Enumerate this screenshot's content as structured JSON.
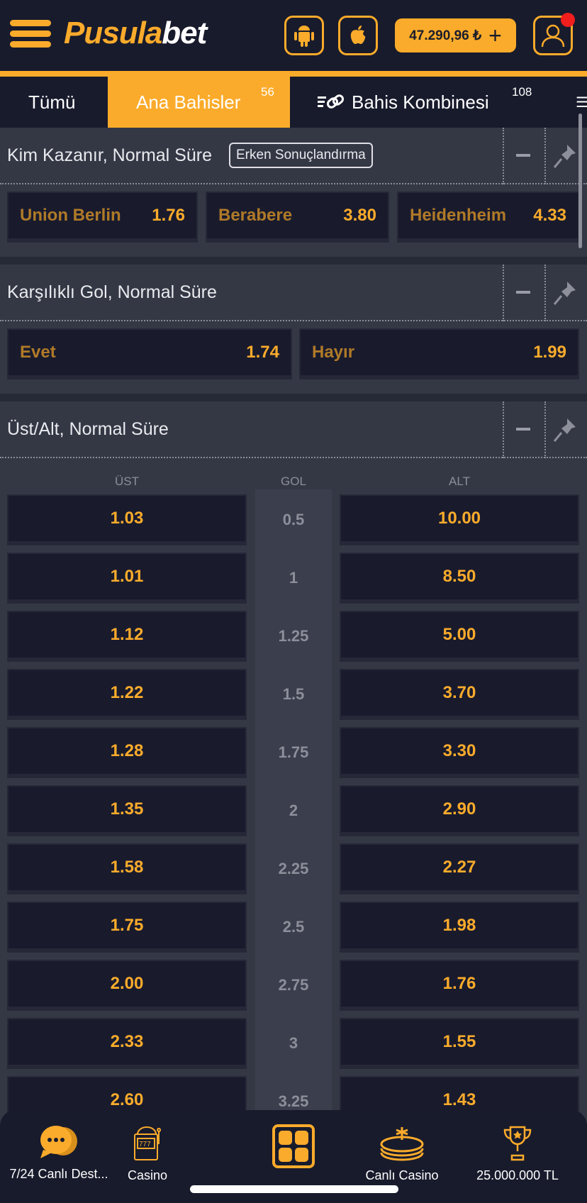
{
  "header": {
    "logo_part1": "Pusula",
    "logo_part2": "bet",
    "balance": "47.290,96 ₺",
    "plus": "+",
    "accent": "#fbab2b"
  },
  "tabs": [
    {
      "label": "Tümü"
    },
    {
      "label": "Ana Bahisler",
      "count": "56"
    },
    {
      "label": "Bahis Kombinesi",
      "count": "108"
    }
  ],
  "markets": {
    "winner": {
      "title": "Kim Kazanır, Normal Süre",
      "badge": "Erken Sonuçlandırma",
      "outcomes": [
        {
          "name": "Union Berlin",
          "odd": "1.76"
        },
        {
          "name": "Berabere",
          "odd": "3.80"
        },
        {
          "name": "Heidenheim",
          "odd": "4.33"
        }
      ]
    },
    "btts": {
      "title": "Karşılıklı Gol, Normal Süre",
      "outcomes": [
        {
          "name": "Evet",
          "odd": "1.74"
        },
        {
          "name": "Hayır",
          "odd": "1.99"
        }
      ]
    },
    "overunder": {
      "title": "Üst/Alt, Normal Süre",
      "col_over": "ÜST",
      "col_goal": "GOL",
      "col_under": "ALT",
      "rows": [
        {
          "over": "1.03",
          "goal": "0.5",
          "under": "10.00"
        },
        {
          "over": "1.01",
          "goal": "1",
          "under": "8.50"
        },
        {
          "over": "1.12",
          "goal": "1.25",
          "under": "5.00"
        },
        {
          "over": "1.22",
          "goal": "1.5",
          "under": "3.70"
        },
        {
          "over": "1.28",
          "goal": "1.75",
          "under": "3.30"
        },
        {
          "over": "1.35",
          "goal": "2",
          "under": "2.90"
        },
        {
          "over": "1.58",
          "goal": "2.25",
          "under": "2.27"
        },
        {
          "over": "1.75",
          "goal": "2.5",
          "under": "1.98"
        },
        {
          "over": "2.00",
          "goal": "2.75",
          "under": "1.76"
        },
        {
          "over": "2.33",
          "goal": "3",
          "under": "1.55"
        },
        {
          "over": "2.60",
          "goal": "3.25",
          "under": "1.43"
        }
      ]
    }
  },
  "bottom_nav": [
    {
      "label": "7/24 Canlı Dest...",
      "icon": "chat-icon"
    },
    {
      "label": "Casino",
      "icon": "slot-machine-icon"
    },
    {
      "label": "",
      "icon": "grid-icon"
    },
    {
      "label": "Canlı Casino",
      "icon": "roulette-icon"
    },
    {
      "label": "25.000.000 TL",
      "icon": "trophy-icon"
    }
  ]
}
